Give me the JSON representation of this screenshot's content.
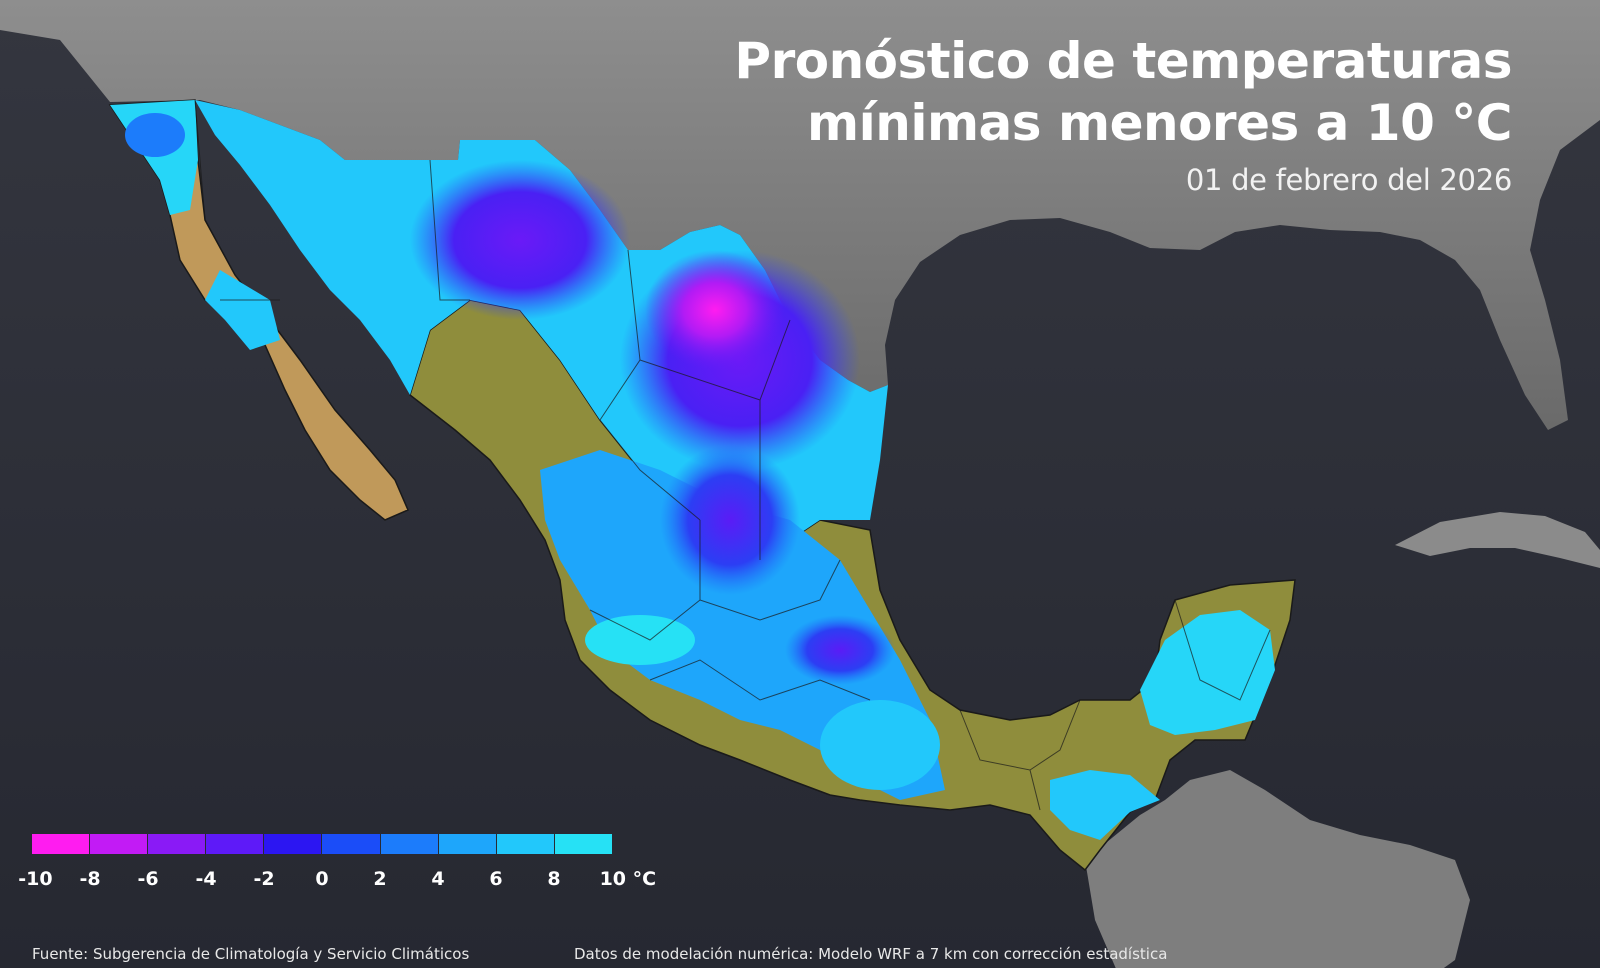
{
  "title": {
    "line1": "Pronóstico de temperaturas",
    "line2": "mínimas menores a 10 °C"
  },
  "date": "01 de febrero del 2026",
  "legend": {
    "colors": [
      "#ff1cf0",
      "#c21bf5",
      "#8a1af6",
      "#5e1af8",
      "#2c16f2",
      "#1b4df8",
      "#1c7cfb",
      "#1ea6fb",
      "#22c8fb",
      "#26e1f5"
    ],
    "ticks": [
      "-10",
      "-8",
      "-6",
      "-4",
      "-2",
      "0",
      "2",
      "4",
      "6",
      "8",
      "10 °C"
    ]
  },
  "footer": {
    "source": "Fuente: Subgerencia de Climatología y Servicio Climáticos",
    "model": "Datos de modelación numérica: Modelo WRF a 7 km con corrección estadística"
  },
  "colors": {
    "ocean": "#2a2c36",
    "land": "#8a8a8a",
    "warm_terrain": "#8f8d3c",
    "baja_terrain": "#c0995a"
  }
}
